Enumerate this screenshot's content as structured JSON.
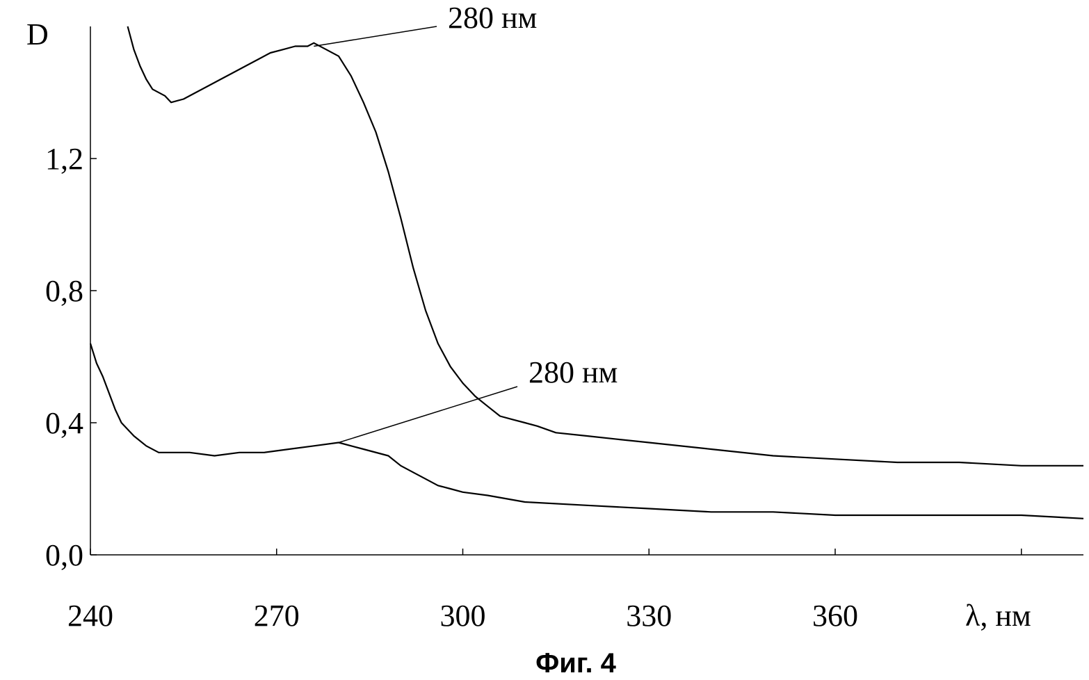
{
  "chart_data": {
    "type": "line",
    "xlabel": "λ, нм",
    "ylabel": "D",
    "caption": "Фиг. 4",
    "xlim": [
      240,
      400
    ],
    "ylim": [
      0,
      1.6
    ],
    "x_ticks": [
      240,
      270,
      300,
      330,
      360,
      390
    ],
    "x_tick_labels": [
      "240",
      "270",
      "300",
      "330",
      "360",
      ""
    ],
    "y_ticks": [
      0.0,
      0.4,
      0.8,
      1.2
    ],
    "y_tick_labels": [
      "0,0",
      "0,4",
      "0,8",
      "1,2"
    ],
    "grid": false,
    "series": [
      {
        "x": [
          246,
          247,
          248,
          249,
          250,
          252,
          253,
          255,
          257,
          259,
          261,
          263,
          265,
          267,
          269,
          271,
          273,
          275,
          276,
          278,
          280,
          282,
          284,
          286,
          288,
          290,
          292,
          294,
          296,
          298,
          300,
          302,
          304,
          306,
          308,
          310,
          312,
          315,
          320,
          325,
          330,
          340,
          350,
          360,
          370,
          380,
          390,
          400
        ],
        "y": [
          1.6,
          1.53,
          1.48,
          1.44,
          1.41,
          1.39,
          1.37,
          1.38,
          1.4,
          1.42,
          1.44,
          1.46,
          1.48,
          1.5,
          1.52,
          1.53,
          1.54,
          1.54,
          1.55,
          1.53,
          1.51,
          1.45,
          1.37,
          1.28,
          1.16,
          1.02,
          0.87,
          0.74,
          0.64,
          0.57,
          0.52,
          0.48,
          0.45,
          0.42,
          0.41,
          0.4,
          0.39,
          0.37,
          0.36,
          0.35,
          0.34,
          0.32,
          0.3,
          0.29,
          0.28,
          0.28,
          0.27,
          0.27
        ]
      },
      {
        "x": [
          240,
          241,
          242,
          243,
          244,
          245,
          247,
          249,
          251,
          253,
          256,
          260,
          264,
          268,
          272,
          276,
          280,
          284,
          288,
          290,
          292,
          294,
          296,
          298,
          300,
          304,
          310,
          320,
          330,
          340,
          350,
          360,
          370,
          380,
          390,
          400
        ],
        "y": [
          0.64,
          0.58,
          0.54,
          0.49,
          0.44,
          0.4,
          0.36,
          0.33,
          0.31,
          0.31,
          0.31,
          0.3,
          0.31,
          0.31,
          0.32,
          0.33,
          0.34,
          0.32,
          0.3,
          0.27,
          0.25,
          0.23,
          0.21,
          0.2,
          0.19,
          0.18,
          0.16,
          0.15,
          0.14,
          0.13,
          0.13,
          0.12,
          0.12,
          0.12,
          0.12,
          0.11
        ]
      }
    ],
    "annotations": [
      {
        "text": "280 нм",
        "x": 276,
        "y": 1.54
      },
      {
        "text": "280 нм",
        "x": 280,
        "y": 0.34
      }
    ]
  }
}
